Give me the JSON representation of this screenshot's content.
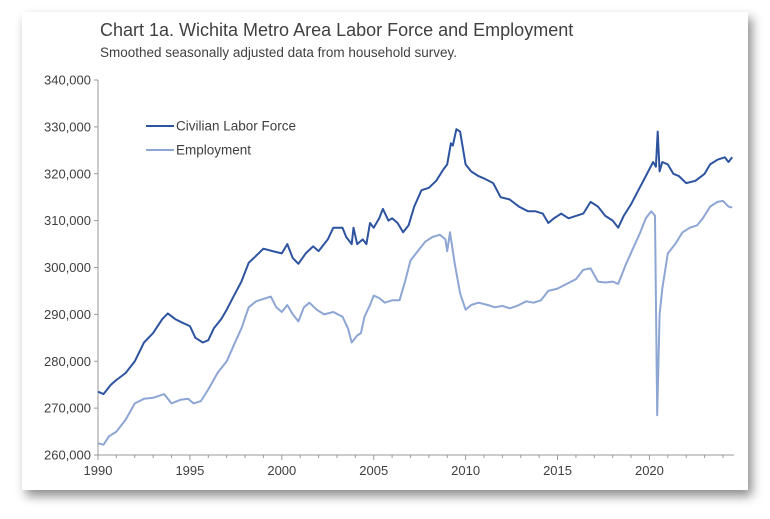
{
  "chart_data": {
    "type": "line",
    "title": "Chart 1a. Wichita Metro Area Labor Force and Employment",
    "subtitle": "Smoothed seasonally adjusted data from household survey.",
    "xlabel": "",
    "ylabel": "",
    "xlim": [
      1990,
      2024.6
    ],
    "ylim": [
      260000,
      340000
    ],
    "x_ticks": [
      "1990",
      "1995",
      "2000",
      "2005",
      "2010",
      "2015",
      "2020"
    ],
    "y_ticks": [
      "260,000",
      "270,000",
      "280,000",
      "290,000",
      "300,000",
      "310,000",
      "320,000",
      "330,000",
      "340,000"
    ],
    "grid": false,
    "legend_position": "top-left",
    "series": [
      {
        "name": "Civilian Labor Force",
        "color": "#2E54A0",
        "points": [
          [
            1990,
            273500
          ],
          [
            1990.3,
            273000
          ],
          [
            1990.7,
            275000
          ],
          [
            1991,
            276000
          ],
          [
            1991.5,
            277500
          ],
          [
            1992,
            280000
          ],
          [
            1992.5,
            284000
          ],
          [
            1993,
            286000
          ],
          [
            1993.5,
            289000
          ],
          [
            1993.8,
            290200
          ],
          [
            1994.2,
            289000
          ],
          [
            1994.6,
            288200
          ],
          [
            1995,
            287500
          ],
          [
            1995.3,
            285000
          ],
          [
            1995.7,
            284000
          ],
          [
            1996,
            284500
          ],
          [
            1996.3,
            287000
          ],
          [
            1996.7,
            289000
          ],
          [
            1997,
            291000
          ],
          [
            1997.4,
            294000
          ],
          [
            1997.8,
            297000
          ],
          [
            1998.2,
            301000
          ],
          [
            1998.6,
            302500
          ],
          [
            1999,
            304000
          ],
          [
            1999.5,
            303500
          ],
          [
            2000,
            303000
          ],
          [
            2000.3,
            305000
          ],
          [
            2000.6,
            302000
          ],
          [
            2000.9,
            300800
          ],
          [
            2001.3,
            303000
          ],
          [
            2001.7,
            304500
          ],
          [
            2002,
            303500
          ],
          [
            2002.5,
            306000
          ],
          [
            2002.8,
            308500
          ],
          [
            2003.3,
            308500
          ],
          [
            2003.5,
            306500
          ],
          [
            2003.8,
            305000
          ],
          [
            2003.9,
            308500
          ],
          [
            2004.1,
            305000
          ],
          [
            2004.4,
            306000
          ],
          [
            2004.6,
            305000
          ],
          [
            2004.8,
            309500
          ],
          [
            2005,
            308500
          ],
          [
            2005.3,
            310500
          ],
          [
            2005.5,
            312500
          ],
          [
            2005.8,
            310000
          ],
          [
            2006,
            310500
          ],
          [
            2006.3,
            309500
          ],
          [
            2006.6,
            307500
          ],
          [
            2006.9,
            309000
          ],
          [
            2007.2,
            313000
          ],
          [
            2007.6,
            316500
          ],
          [
            2008,
            317000
          ],
          [
            2008.4,
            318500
          ],
          [
            2008.8,
            321000
          ],
          [
            2009,
            322000
          ],
          [
            2009.2,
            326500
          ],
          [
            2009.3,
            326000
          ],
          [
            2009.5,
            329500
          ],
          [
            2009.7,
            329000
          ],
          [
            2010,
            322000
          ],
          [
            2010.3,
            320500
          ],
          [
            2010.7,
            319500
          ],
          [
            2011,
            319000
          ],
          [
            2011.5,
            318000
          ],
          [
            2011.9,
            315000
          ],
          [
            2012.4,
            314500
          ],
          [
            2012.9,
            313000
          ],
          [
            2013.4,
            312000
          ],
          [
            2013.8,
            312000
          ],
          [
            2014.2,
            311500
          ],
          [
            2014.5,
            309500
          ],
          [
            2014.8,
            310500
          ],
          [
            2015.2,
            311500
          ],
          [
            2015.6,
            310500
          ],
          [
            2016,
            311000
          ],
          [
            2016.4,
            311500
          ],
          [
            2016.8,
            314000
          ],
          [
            2017.2,
            313000
          ],
          [
            2017.6,
            311000
          ],
          [
            2018,
            310000
          ],
          [
            2018.3,
            308500
          ],
          [
            2018.6,
            311000
          ],
          [
            2019,
            313500
          ],
          [
            2019.4,
            316500
          ],
          [
            2019.8,
            319500
          ],
          [
            2020.2,
            322500
          ],
          [
            2020.35,
            321500
          ],
          [
            2020.45,
            329000
          ],
          [
            2020.55,
            320500
          ],
          [
            2020.7,
            322500
          ],
          [
            2021,
            322000
          ],
          [
            2021.3,
            320000
          ],
          [
            2021.6,
            319500
          ],
          [
            2022,
            318000
          ],
          [
            2022.5,
            318500
          ],
          [
            2023,
            320000
          ],
          [
            2023.3,
            322000
          ],
          [
            2023.7,
            323000
          ],
          [
            2024.1,
            323500
          ],
          [
            2024.3,
            322500
          ],
          [
            2024.5,
            323500
          ]
        ]
      },
      {
        "name": "Employment",
        "color": "#8EA6D4",
        "points": [
          [
            1990,
            262500
          ],
          [
            1990.3,
            262200
          ],
          [
            1990.6,
            264000
          ],
          [
            1991,
            265000
          ],
          [
            1991.5,
            267500
          ],
          [
            1992,
            271000
          ],
          [
            1992.5,
            272000
          ],
          [
            1993,
            272200
          ],
          [
            1993.6,
            273000
          ],
          [
            1994,
            271000
          ],
          [
            1994.5,
            271800
          ],
          [
            1994.9,
            272000
          ],
          [
            1995.2,
            271000
          ],
          [
            1995.6,
            271500
          ],
          [
            1996,
            274000
          ],
          [
            1996.5,
            277500
          ],
          [
            1997,
            280000
          ],
          [
            1997.4,
            283500
          ],
          [
            1997.8,
            287000
          ],
          [
            1998.2,
            291500
          ],
          [
            1998.6,
            292800
          ],
          [
            1999,
            293300
          ],
          [
            1999.4,
            293800
          ],
          [
            1999.7,
            291500
          ],
          [
            2000,
            290500
          ],
          [
            2000.3,
            292000
          ],
          [
            2000.6,
            290000
          ],
          [
            2000.9,
            288500
          ],
          [
            2001.2,
            291500
          ],
          [
            2001.5,
            292500
          ],
          [
            2001.9,
            291000
          ],
          [
            2002.3,
            290000
          ],
          [
            2002.8,
            290500
          ],
          [
            2003.3,
            289500
          ],
          [
            2003.6,
            287000
          ],
          [
            2003.8,
            284000
          ],
          [
            2004.1,
            285500
          ],
          [
            2004.3,
            286000
          ],
          [
            2004.5,
            289500
          ],
          [
            2004.8,
            292000
          ],
          [
            2005,
            294000
          ],
          [
            2005.3,
            293500
          ],
          [
            2005.6,
            292500
          ],
          [
            2006,
            293000
          ],
          [
            2006.4,
            293000
          ],
          [
            2006.7,
            297000
          ],
          [
            2007,
            301500
          ],
          [
            2007.4,
            303500
          ],
          [
            2007.8,
            305500
          ],
          [
            2008.2,
            306500
          ],
          [
            2008.6,
            307000
          ],
          [
            2008.9,
            306000
          ],
          [
            2009,
            303500
          ],
          [
            2009.15,
            307500
          ],
          [
            2009.4,
            301000
          ],
          [
            2009.7,
            294500
          ],
          [
            2010,
            291000
          ],
          [
            2010.3,
            292000
          ],
          [
            2010.7,
            292500
          ],
          [
            2011.2,
            292000
          ],
          [
            2011.6,
            291500
          ],
          [
            2012,
            291800
          ],
          [
            2012.4,
            291300
          ],
          [
            2012.8,
            291800
          ],
          [
            2013.3,
            292800
          ],
          [
            2013.7,
            292500
          ],
          [
            2014.1,
            293000
          ],
          [
            2014.5,
            295000
          ],
          [
            2015,
            295500
          ],
          [
            2015.5,
            296500
          ],
          [
            2016,
            297500
          ],
          [
            2016.4,
            299500
          ],
          [
            2016.8,
            299800
          ],
          [
            2017.2,
            297000
          ],
          [
            2017.6,
            296800
          ],
          [
            2018,
            297000
          ],
          [
            2018.3,
            296500
          ],
          [
            2018.7,
            300500
          ],
          [
            2019.1,
            304000
          ],
          [
            2019.5,
            307500
          ],
          [
            2019.8,
            310500
          ],
          [
            2020.1,
            312000
          ],
          [
            2020.3,
            311000
          ],
          [
            2020.42,
            268500
          ],
          [
            2020.55,
            290000
          ],
          [
            2020.7,
            295500
          ],
          [
            2021,
            303000
          ],
          [
            2021.4,
            305000
          ],
          [
            2021.8,
            307500
          ],
          [
            2022.2,
            308500
          ],
          [
            2022.6,
            309000
          ],
          [
            2022.9,
            310500
          ],
          [
            2023.3,
            313000
          ],
          [
            2023.7,
            314000
          ],
          [
            2024,
            314200
          ],
          [
            2024.3,
            313000
          ],
          [
            2024.5,
            312800
          ]
        ]
      }
    ]
  }
}
